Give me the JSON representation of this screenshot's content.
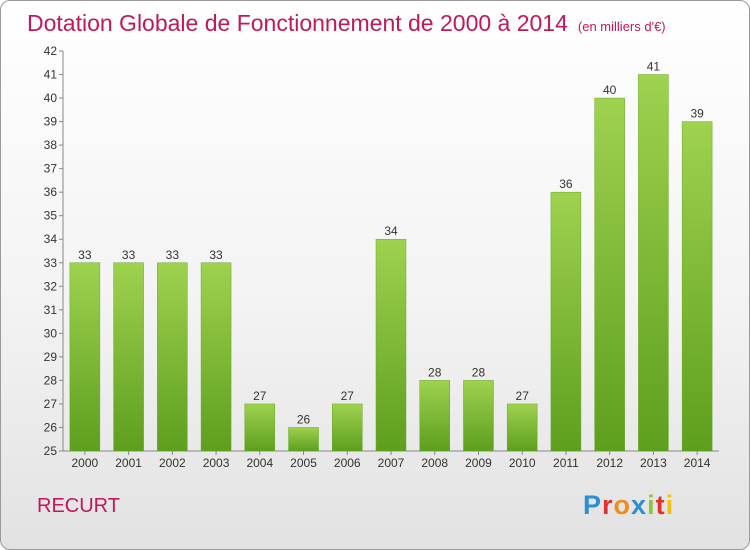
{
  "title": "Dotation Globale de Fonctionnement de 2000 à 2014",
  "unit": "(en milliers d'€)",
  "place": "RECURT",
  "logo": {
    "letters": [
      "P",
      "r",
      "o",
      "x",
      "i",
      "t",
      "i"
    ],
    "colors": [
      "#2b8fd1",
      "#e0332a",
      "#f08c1a",
      "#2b8fd1",
      "#8cc63f",
      "#e0332a",
      "#f4c20d"
    ]
  },
  "colors": {
    "bar": "#7fc43a",
    "bar_dark": "#5e9e1e",
    "axis": "#888888",
    "title": "#c2185b"
  },
  "chart_data": {
    "type": "bar",
    "categories": [
      "2000",
      "2001",
      "2002",
      "2003",
      "2004",
      "2005",
      "2006",
      "2007",
      "2008",
      "2009",
      "2010",
      "2011",
      "2012",
      "2013",
      "2014"
    ],
    "values": [
      33,
      33,
      33,
      33,
      27,
      26,
      27,
      34,
      28,
      28,
      27,
      36,
      40,
      41,
      39
    ],
    "value_labels": [
      "33",
      "33",
      "33",
      "33",
      "27",
      "26",
      "27",
      "34",
      "28",
      "28",
      "27",
      "36",
      "40",
      "41",
      "39"
    ],
    "ylim": [
      25,
      42
    ],
    "yticks": [
      25,
      26,
      27,
      28,
      29,
      30,
      31,
      32,
      33,
      34,
      35,
      36,
      37,
      38,
      39,
      40,
      41,
      42
    ],
    "ytick_labels": [
      "25",
      "26",
      "27",
      "28",
      "29",
      "30",
      "31",
      "32",
      "33",
      "34",
      "35",
      "36",
      "37",
      "38",
      "39",
      "40",
      "41",
      "42"
    ],
    "grid": false,
    "legend": "none"
  }
}
